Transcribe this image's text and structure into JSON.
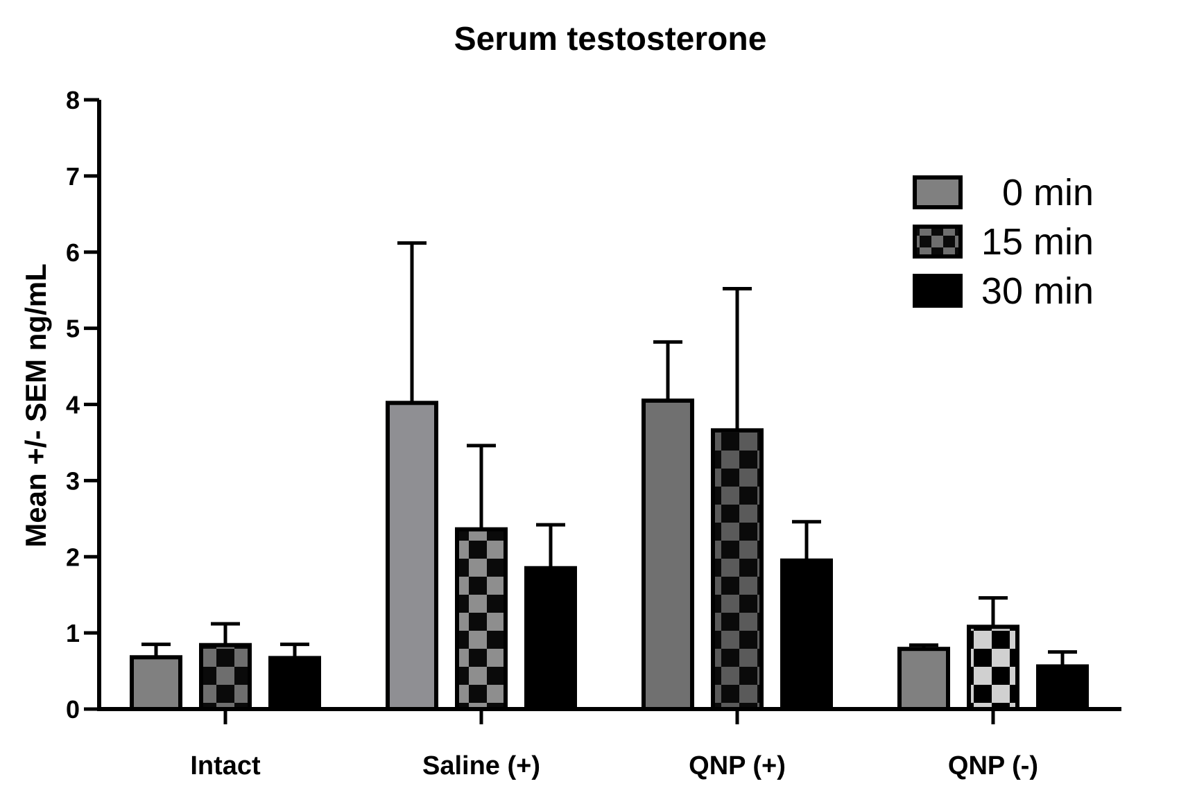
{
  "chart_data": {
    "type": "bar",
    "title": "Serum testosterone",
    "xlabel": "",
    "ylabel": "Mean +/- SEM ng/mL",
    "ylim": [
      0,
      8
    ],
    "yticks": [
      0,
      1,
      2,
      3,
      4,
      5,
      6,
      7,
      8
    ],
    "categories": [
      "Intact",
      "Saline (+)",
      "QNP (+)",
      "QNP (-)"
    ],
    "legend_position": "top-right",
    "grid": false,
    "series": [
      {
        "name": "0 min",
        "values": [
          0.68,
          4.02,
          4.05,
          0.79
        ],
        "errors": [
          0.17,
          2.1,
          0.77,
          0.05
        ],
        "fill": [
          "#808080",
          "#8f8f93",
          "#707070",
          "#808080"
        ]
      },
      {
        "name": "15 min",
        "values": [
          0.84,
          2.36,
          3.66,
          1.08
        ],
        "errors": [
          0.28,
          1.1,
          1.86,
          0.38
        ],
        "fill": [
          "#6e6e6e",
          "#8e8e8e",
          "#5a5a5a",
          "#d0d0d0"
        ]
      },
      {
        "name": "30 min",
        "values": [
          0.67,
          1.85,
          1.95,
          0.56
        ],
        "errors": [
          0.18,
          0.57,
          0.51,
          0.19
        ],
        "fill": [
          "#000000",
          "#000000",
          "#000000",
          "#000000"
        ]
      }
    ]
  }
}
